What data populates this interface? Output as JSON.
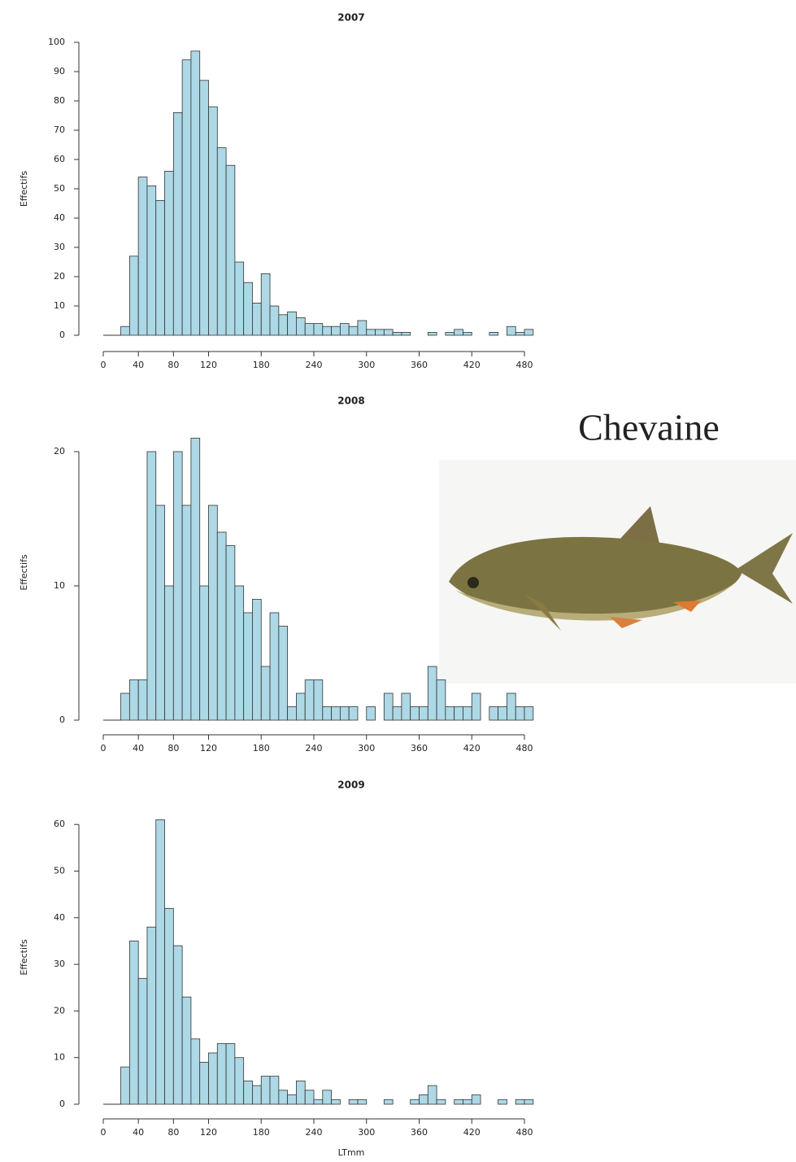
{
  "title": "Chevaine",
  "chart_data": [
    {
      "type": "histogram",
      "title": "2007",
      "ylabel": "Effectifs",
      "color": "#add8e6",
      "bins": [
        20,
        30,
        40,
        50,
        60,
        70,
        80,
        90,
        100,
        110,
        120,
        130,
        140,
        150,
        160,
        170,
        180,
        190,
        200,
        210,
        220,
        230,
        240,
        250,
        260,
        270,
        280,
        290,
        300,
        310,
        320,
        330,
        340,
        350,
        360,
        370,
        380,
        390,
        400,
        410,
        420,
        430,
        440,
        450,
        460,
        470,
        480,
        490
      ],
      "values": [
        3,
        27,
        54,
        51,
        46,
        56,
        76,
        94,
        97,
        87,
        78,
        64,
        58,
        25,
        18,
        11,
        21,
        10,
        7,
        8,
        6,
        4,
        4,
        3,
        3,
        4,
        3,
        5,
        2,
        2,
        2,
        1,
        1,
        0,
        0,
        1,
        0,
        1,
        2,
        1,
        0,
        0,
        1,
        0,
        3,
        1,
        2
      ],
      "xlim": [
        0,
        490
      ],
      "xticks": [
        0,
        40,
        80,
        120,
        180,
        240,
        300,
        360,
        420,
        480
      ],
      "ylim": [
        0,
        100
      ],
      "yticks": [
        0,
        10,
        20,
        30,
        40,
        50,
        60,
        70,
        80,
        90,
        100
      ]
    },
    {
      "type": "histogram",
      "title": "2008",
      "ylabel": "Effectifs",
      "color": "#add8e6",
      "bins": [
        20,
        30,
        40,
        50,
        60,
        70,
        80,
        90,
        100,
        110,
        120,
        130,
        140,
        150,
        160,
        170,
        180,
        190,
        200,
        210,
        220,
        230,
        240,
        250,
        260,
        270,
        280,
        290,
        300,
        310,
        320,
        330,
        340,
        350,
        360,
        370,
        380,
        390,
        400,
        410,
        420,
        430,
        440,
        450,
        460,
        470,
        480,
        490
      ],
      "values": [
        2,
        3,
        3,
        20,
        16,
        10,
        20,
        16,
        21,
        10,
        16,
        14,
        13,
        10,
        8,
        9,
        4,
        8,
        7,
        1,
        2,
        3,
        3,
        1,
        1,
        1,
        1,
        0,
        1,
        0,
        2,
        1,
        2,
        1,
        1,
        4,
        3,
        1,
        1,
        1,
        2,
        0,
        1,
        1,
        2,
        1,
        1
      ],
      "xlim": [
        0,
        490
      ],
      "xticks": [
        0,
        40,
        80,
        120,
        180,
        240,
        300,
        360,
        420,
        480
      ],
      "ylim": [
        0,
        22
      ],
      "yticks": [
        0,
        10,
        20
      ]
    },
    {
      "type": "histogram",
      "title": "2009",
      "ylabel": "Effectifs",
      "xlabel": "LTmm",
      "color": "#add8e6",
      "bins": [
        20,
        30,
        40,
        50,
        60,
        70,
        80,
        90,
        100,
        110,
        120,
        130,
        140,
        150,
        160,
        170,
        180,
        190,
        200,
        210,
        220,
        230,
        240,
        250,
        260,
        270,
        280,
        290,
        300,
        310,
        320,
        330,
        340,
        350,
        360,
        370,
        380,
        390,
        400,
        410,
        420,
        430,
        440,
        450,
        460,
        470,
        480,
        490
      ],
      "values": [
        8,
        35,
        27,
        38,
        61,
        42,
        34,
        23,
        14,
        9,
        11,
        13,
        13,
        10,
        5,
        4,
        6,
        6,
        3,
        2,
        5,
        3,
        1,
        3,
        1,
        0,
        1,
        1,
        0,
        0,
        1,
        0,
        0,
        1,
        2,
        4,
        1,
        0,
        1,
        1,
        2,
        0,
        0,
        1,
        0,
        1,
        1
      ],
      "xlim": [
        0,
        490
      ],
      "xticks": [
        0,
        40,
        80,
        120,
        180,
        240,
        300,
        360,
        420,
        480
      ],
      "ylim": [
        0,
        63
      ],
      "yticks": [
        0,
        10,
        20,
        30,
        40,
        50,
        60
      ]
    }
  ]
}
